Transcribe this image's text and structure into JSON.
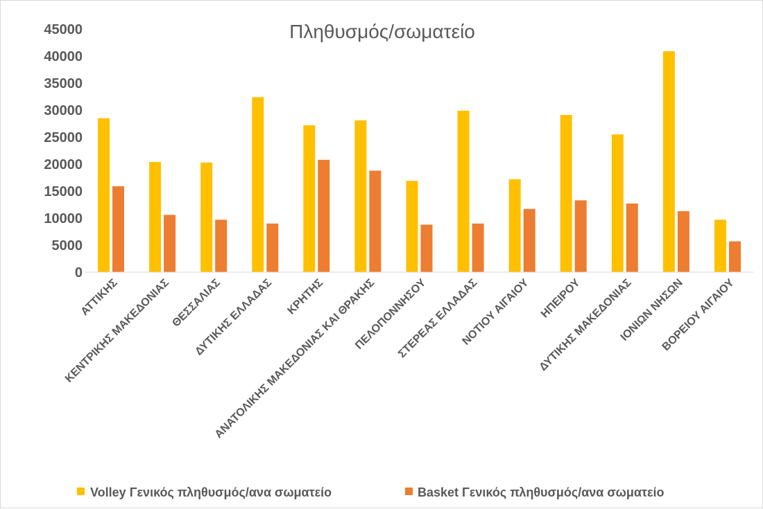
{
  "chart_data": {
    "type": "bar",
    "title": "Πληθυσμός/σωματείο",
    "categories": [
      "ΑΤΤΙΚΗΣ",
      "ΚΕΝΤΡΙΚΗΣ ΜΑΚΕΔΟΝΙΑΣ",
      "ΘΕΣΣΑΛΙΑΣ",
      "ΔΥΤΙΚΗΣ ΕΛΛΑΔΑΣ",
      "ΚΡΗΤΗΣ",
      "ΑΝΑΤΟΛΙΚΗΣ ΜΑΚΕΔΟΝΙΑΣ ΚΑΙ ΘΡΑΚΗΣ",
      "ΠΕΛΟΠΟΝΝΗΣΟΥ",
      "ΣΤΕΡΕΑΣ ΕΛΛΑΔΑΣ",
      "ΝΟΤΙΟΥ ΑΙΓΑΙΟΥ",
      "ΗΠΕΙΡΟΥ",
      "ΔΥΤΙΚΗΣ ΜΑΚΕΔΟΝΙΑΣ",
      "ΙΟΝΙΩΝ ΝΗΣΩΝ",
      "ΒΟΡΕΙΟΥ ΑΙΓΑΙΟΥ"
    ],
    "series": [
      {
        "name": "Volley Γενικός πληθυσμός/ανα σωματείο",
        "color": "#FFC000",
        "values": [
          28500,
          20400,
          20300,
          32400,
          27200,
          28100,
          16900,
          29900,
          17200,
          29100,
          25500,
          40900,
          9700
        ]
      },
      {
        "name": "Basket Γενικός πληθυσμός/ανα σωματείο",
        "color": "#ED7D31",
        "values": [
          15900,
          10600,
          9700,
          9000,
          20800,
          18800,
          8800,
          9000,
          11700,
          13300,
          12700,
          11300,
          5700
        ]
      }
    ],
    "ylim": [
      0,
      45000
    ],
    "yticks": [
      "0",
      "5000",
      "10000",
      "15000",
      "20000",
      "25000",
      "30000",
      "35000",
      "40000",
      "45000"
    ],
    "xlabel": "",
    "ylabel": "",
    "grid": false,
    "legend": "bottom"
  }
}
